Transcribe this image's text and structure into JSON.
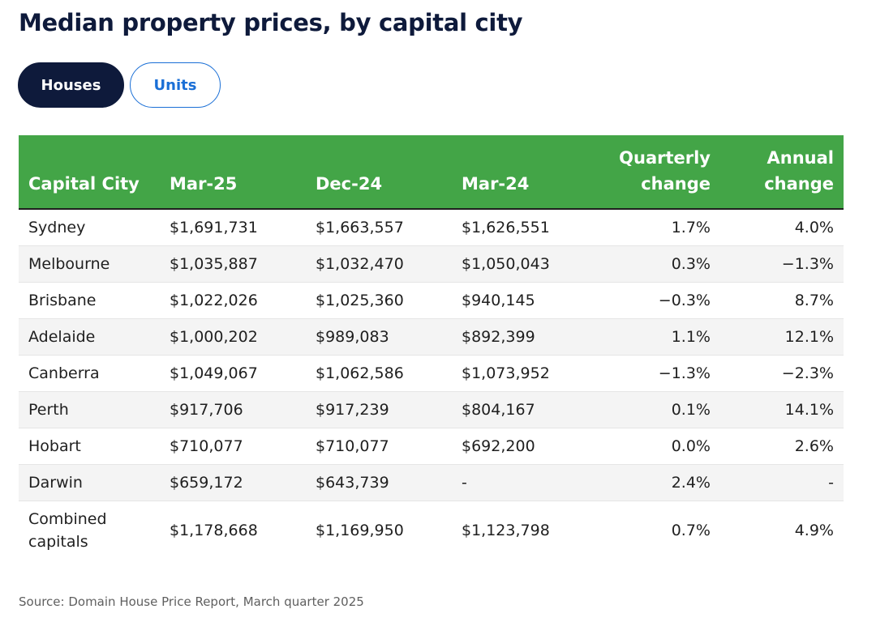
{
  "title": "Median property prices, by capital city",
  "toggle": {
    "houses_label": "Houses",
    "units_label": "Units",
    "active": "Houses"
  },
  "colors": {
    "header_bg": "#43a547",
    "title": "#0e1a3b",
    "active_toggle_bg": "#0e1a3b",
    "inactive_toggle_text": "#1a6fd6"
  },
  "table": {
    "headers": [
      "Capital City",
      "Mar-25",
      "Dec-24",
      "Mar-24",
      "Quarterly change",
      "Annual change"
    ],
    "rows": [
      [
        "Sydney",
        "$1,691,731",
        "$1,663,557",
        "$1,626,551",
        "1.7%",
        "4.0%"
      ],
      [
        "Melbourne",
        "$1,035,887",
        "$1,032,470",
        "$1,050,043",
        "0.3%",
        "−1.3%"
      ],
      [
        "Brisbane",
        "$1,022,026",
        "$1,025,360",
        "$940,145",
        "−0.3%",
        "8.7%"
      ],
      [
        "Adelaide",
        "$1,000,202",
        "$989,083",
        "$892,399",
        "1.1%",
        "12.1%"
      ],
      [
        "Canberra",
        "$1,049,067",
        "$1,062,586",
        "$1,073,952",
        "−1.3%",
        "−2.3%"
      ],
      [
        "Perth",
        "$917,706",
        "$917,239",
        "$804,167",
        "0.1%",
        "14.1%"
      ],
      [
        "Hobart",
        "$710,077",
        "$710,077",
        "$692,200",
        "0.0%",
        "2.6%"
      ],
      [
        "Darwin",
        "$659,172",
        "$643,739",
        "-",
        "2.4%",
        "-"
      ],
      [
        "Combined capitals",
        "$1,178,668",
        "$1,169,950",
        "$1,123,798",
        "0.7%",
        "4.9%"
      ]
    ]
  },
  "source": "Source: Domain House Price Report, March quarter 2025"
}
